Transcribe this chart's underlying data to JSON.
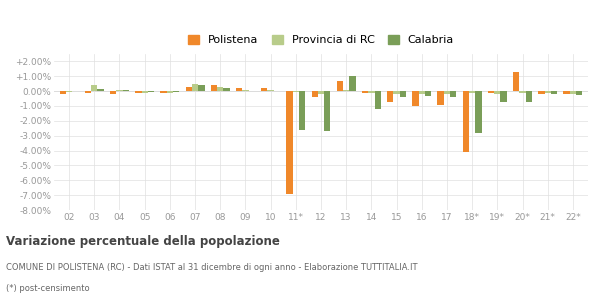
{
  "categories": [
    "02",
    "03",
    "04",
    "05",
    "06",
    "07",
    "08",
    "09",
    "10",
    "11*",
    "12",
    "13",
    "14",
    "15",
    "16",
    "17",
    "18*",
    "19*",
    "20*",
    "21*",
    "22*"
  ],
  "polistena": [
    -0.2,
    -0.1,
    -0.2,
    -0.1,
    -0.1,
    0.3,
    0.4,
    0.2,
    0.2,
    -6.9,
    -0.4,
    0.7,
    -0.1,
    -0.7,
    -1.0,
    -0.9,
    -4.1,
    -0.1,
    1.3,
    -0.2,
    -0.2
  ],
  "provincia_rc": [
    -0.05,
    0.4,
    0.05,
    -0.1,
    -0.1,
    0.45,
    0.3,
    0.05,
    0.05,
    -0.05,
    -0.2,
    0.1,
    -0.1,
    -0.2,
    -0.2,
    -0.2,
    -0.1,
    -0.2,
    -0.1,
    -0.15,
    -0.2
  ],
  "calabria": [
    0.0,
    0.15,
    0.1,
    -0.05,
    -0.05,
    0.4,
    0.2,
    0.0,
    0.0,
    -2.6,
    -2.7,
    1.0,
    -1.2,
    -0.4,
    -0.35,
    -0.4,
    -2.8,
    -0.75,
    -0.7,
    -0.2,
    -0.25
  ],
  "color_polistena": "#f0882a",
  "color_provincia": "#b8cc8a",
  "color_calabria": "#7a9e58",
  "ylim": [
    -8.0,
    2.5
  ],
  "yticks": [
    -8.0,
    -7.0,
    -6.0,
    -5.0,
    -4.0,
    -3.0,
    -2.0,
    -1.0,
    0.0,
    1.0,
    2.0
  ],
  "ytick_labels": [
    "-8.00%",
    "-7.00%",
    "-6.00%",
    "-5.00%",
    "-4.00%",
    "-3.00%",
    "-2.00%",
    "-1.00%",
    "0.00%",
    "+1.00%",
    "+2.00%"
  ],
  "title": "Variazione percentuale della popolazione",
  "subtitle": "COMUNE DI POLISTENA (RC) - Dati ISTAT al 31 dicembre di ogni anno - Elaborazione TUTTITALIA.IT",
  "footnote": "(*) post-censimento",
  "legend_labels": [
    "Polistena",
    "Provincia di RC",
    "Calabria"
  ],
  "bar_width": 0.25
}
